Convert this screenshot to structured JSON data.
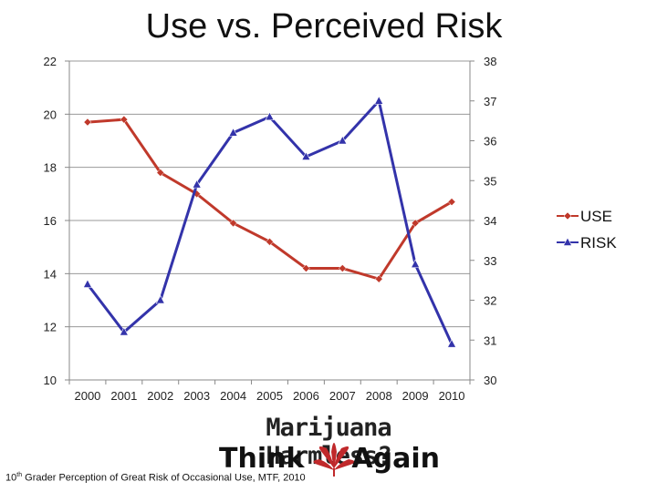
{
  "title": "Use vs. Perceived Risk",
  "chart_data": {
    "type": "line",
    "categories": [
      "2000",
      "2001",
      "2002",
      "2003",
      "2004",
      "2005",
      "2006",
      "2007",
      "2008",
      "2009",
      "2010"
    ],
    "left_axis": {
      "min": 10,
      "max": 22,
      "step": 2,
      "ticks": [
        "10",
        "12",
        "14",
        "16",
        "18",
        "20",
        "22"
      ]
    },
    "right_axis": {
      "min": 30,
      "max": 38,
      "step": 1,
      "ticks": [
        "30",
        "31",
        "32",
        "33",
        "34",
        "35",
        "36",
        "37",
        "38"
      ]
    },
    "series": [
      {
        "name": "USE",
        "axis": "left",
        "color": "#C0392B",
        "marker": "diamond",
        "values": [
          19.7,
          19.8,
          17.8,
          17.0,
          15.9,
          15.2,
          14.2,
          14.2,
          13.8,
          15.9,
          16.7
        ]
      },
      {
        "name": "RISK",
        "axis": "right",
        "color": "#3333AA",
        "marker": "triangle",
        "values": [
          32.4,
          31.2,
          32.0,
          34.9,
          36.2,
          36.6,
          35.6,
          36.0,
          37.0,
          32.9,
          30.9
        ]
      }
    ],
    "legend": {
      "position": "right",
      "entries": [
        "USE",
        "RISK"
      ]
    },
    "grid": true
  },
  "logo": {
    "line1": "Marijuana Harmless?",
    "think": "Think",
    "again": "Again"
  },
  "caption": {
    "ordinal": "10",
    "suffix": "th",
    "text": " Grader Perception of Great Risk of Occasional Use, MTF, 2010"
  }
}
